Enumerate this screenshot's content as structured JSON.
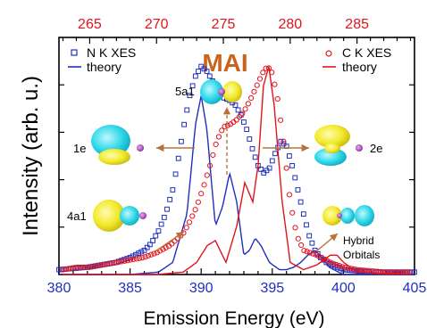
{
  "chart_data": {
    "type": "line",
    "title": "MAI",
    "xlabel": "Emission Energy (eV)",
    "ylabel": "Intensity (arb. u.)",
    "xlim": [
      380,
      405
    ],
    "top_xlim": [
      262.7,
      289.3
    ],
    "xticks": [
      "380",
      "385",
      "390",
      "395",
      "400",
      "405"
    ],
    "top_xticks": [
      "265",
      "270",
      "275",
      "280",
      "285"
    ],
    "legend_left": [
      "N K XES",
      "theory"
    ],
    "legend_right": [
      "C K XES",
      "theory"
    ],
    "orbital_labels": [
      "5a1",
      "1e",
      "4a1",
      "2e"
    ],
    "annotation": "Hybrid Orbitals",
    "colors": {
      "n_series": "#1f2fbf",
      "c_series": "#e2141c",
      "title": "#c8641e",
      "top_axis": "#e2141c",
      "bottom_axis": "#1f2fbf",
      "arrow": "#b8733b"
    },
    "series": [
      {
        "name": "N K XES",
        "axis": "bottom",
        "style": "open-square",
        "x": [
          380,
          381,
          382,
          383,
          384,
          385,
          386,
          386.5,
          387,
          387.5,
          388,
          388.4,
          388.8,
          389.2,
          389.6,
          390,
          390.4,
          390.8,
          391.2,
          391.6,
          392,
          392.4,
          392.8,
          393.2,
          393.6,
          394,
          394.4,
          394.8,
          395.2,
          395.6,
          396,
          396.4,
          396.8,
          397.2,
          397.6,
          398,
          398.4,
          398.8,
          399.2,
          399.6,
          400,
          401,
          402,
          403,
          404,
          405
        ],
        "y": [
          0.02,
          0.025,
          0.03,
          0.04,
          0.05,
          0.07,
          0.1,
          0.13,
          0.18,
          0.25,
          0.35,
          0.48,
          0.62,
          0.74,
          0.82,
          0.86,
          0.84,
          0.8,
          0.76,
          0.73,
          0.72,
          0.7,
          0.66,
          0.6,
          0.52,
          0.45,
          0.42,
          0.44,
          0.5,
          0.55,
          0.53,
          0.45,
          0.35,
          0.25,
          0.16,
          0.1,
          0.07,
          0.05,
          0.04,
          0.03,
          0.02,
          0.015,
          0.01,
          0.01,
          0.01,
          0.01
        ]
      },
      {
        "name": "theory",
        "axis": "bottom",
        "style": "line",
        "x": [
          380,
          385,
          387,
          388,
          389,
          389.6,
          390,
          390.4,
          391,
          391.5,
          392,
          392.5,
          393,
          393.4,
          393.8,
          394.2,
          394.8,
          395.5,
          396,
          396.5,
          397,
          397.5,
          398,
          398.5,
          399,
          400,
          402,
          405
        ],
        "y": [
          0.0,
          0.0,
          0.01,
          0.05,
          0.25,
          0.62,
          0.74,
          0.6,
          0.2,
          0.28,
          0.42,
          0.3,
          0.08,
          0.1,
          0.15,
          0.12,
          0.05,
          0.02,
          0.02,
          0.03,
          0.05,
          0.08,
          0.1,
          0.07,
          0.03,
          0.0,
          0.0,
          0.0
        ]
      },
      {
        "name": "C K XES",
        "axis": "top",
        "style": "open-circle",
        "x": [
          263,
          264,
          265,
          266,
          267,
          268,
          269,
          270,
          271,
          272,
          272.5,
          273,
          273.5,
          274,
          274.5,
          275,
          275.5,
          276,
          276.5,
          277,
          277.5,
          278,
          278.3,
          278.6,
          279,
          279.5,
          280,
          280.5,
          281,
          282,
          283,
          284,
          285,
          286,
          287,
          288,
          289
        ],
        "y": [
          0.02,
          0.03,
          0.03,
          0.04,
          0.05,
          0.06,
          0.07,
          0.09,
          0.12,
          0.17,
          0.22,
          0.28,
          0.36,
          0.45,
          0.55,
          0.61,
          0.62,
          0.64,
          0.67,
          0.72,
          0.78,
          0.84,
          0.86,
          0.84,
          0.75,
          0.55,
          0.3,
          0.16,
          0.1,
          0.08,
          0.05,
          0.03,
          0.02,
          0.015,
          0.01,
          0.01,
          0.01
        ]
      },
      {
        "name": "theory",
        "axis": "top",
        "style": "line",
        "x": [
          263,
          268,
          270,
          272,
          273,
          273.8,
          274.4,
          275.2,
          276,
          276.6,
          277.2,
          277.6,
          278,
          278.4,
          278.8,
          279.4,
          280,
          281,
          282,
          283,
          283.5,
          284,
          285,
          289
        ],
        "y": [
          0.0,
          0.0,
          0.0,
          0.01,
          0.05,
          0.12,
          0.14,
          0.05,
          0.2,
          0.38,
          0.3,
          0.45,
          0.78,
          0.86,
          0.7,
          0.3,
          0.05,
          0.02,
          0.04,
          0.08,
          0.08,
          0.05,
          0.01,
          0.0
        ]
      }
    ]
  }
}
